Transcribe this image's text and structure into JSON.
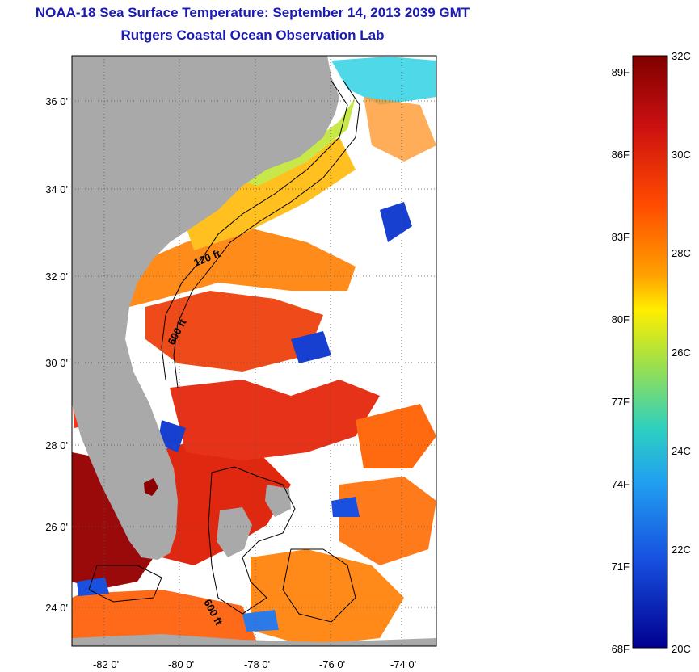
{
  "header": {
    "title": "NOAA-18 Sea Surface Temperature:  September 14, 2013 2039 GMT",
    "subtitle": "Rutgers Coastal Ocean Observation Lab"
  },
  "map": {
    "lat_labels": [
      "36 0'",
      "34 0'",
      "32 0'",
      "30 0'",
      "28 0'",
      "26 0'",
      "24 0'"
    ],
    "lon_labels": [
      "-82 0'",
      "-80 0'",
      "-78 0'",
      "-76 0'",
      "-74 0'"
    ],
    "contour_labels": [
      "120 ft",
      "600 ft",
      "600 ft"
    ],
    "colors": {
      "land": "#a9a9a9",
      "cloud": "#ffffff"
    }
  },
  "colorbar": {
    "fahrenheit_labels": [
      "89F",
      "86F",
      "83F",
      "80F",
      "77F",
      "74F",
      "71F",
      "68F"
    ],
    "celsius_labels": [
      "32C",
      "30C",
      "28C",
      "26C",
      "24C",
      "22C",
      "20C"
    ],
    "stops": [
      "#7f0000",
      "#cc1010",
      "#ff4a00",
      "#ffa000",
      "#ffee00",
      "#9ee04a",
      "#2ed0c0",
      "#20a0f0",
      "#1850e0",
      "#000090"
    ]
  }
}
